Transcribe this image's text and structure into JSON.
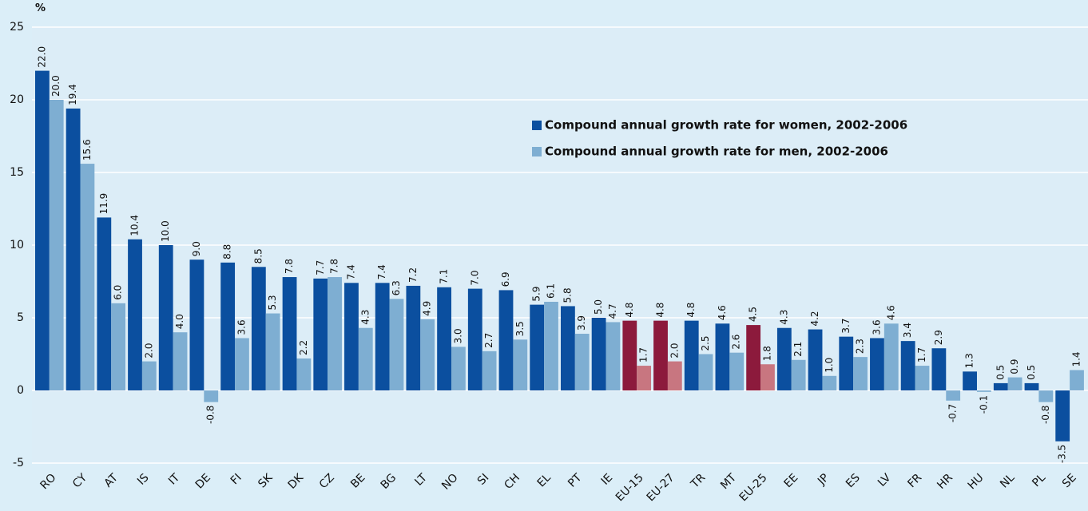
{
  "chart_data": {
    "type": "bar",
    "y_label": "%",
    "categories": [
      "RO",
      "CY",
      "AT",
      "IS",
      "IT",
      "DE",
      "FI",
      "SK",
      "DK",
      "CZ",
      "BE",
      "BG",
      "LT",
      "NO",
      "SI",
      "CH",
      "EL",
      "PT",
      "IE",
      "EU-15",
      "EU-27",
      "TR",
      "MT",
      "EU-25",
      "EE",
      "JP",
      "ES",
      "LV",
      "FR",
      "HR",
      "HU",
      "NL",
      "PL",
      "SE"
    ],
    "series": [
      {
        "name": "Compound annual growth rate for women, 2002-2006",
        "color": "#0b4f9f",
        "colors": [
          "#0b4f9f",
          "#0b4f9f",
          "#0b4f9f",
          "#0b4f9f",
          "#0b4f9f",
          "#0b4f9f",
          "#0b4f9f",
          "#0b4f9f",
          "#0b4f9f",
          "#0b4f9f",
          "#0b4f9f",
          "#0b4f9f",
          "#0b4f9f",
          "#0b4f9f",
          "#0b4f9f",
          "#0b4f9f",
          "#0b4f9f",
          "#0b4f9f",
          "#0b4f9f",
          "#8c1a3c",
          "#8c1a3c",
          "#0b4f9f",
          "#0b4f9f",
          "#8c1a3c",
          "#0b4f9f",
          "#0b4f9f",
          "#0b4f9f",
          "#0b4f9f",
          "#0b4f9f",
          "#0b4f9f",
          "#0b4f9f",
          "#0b4f9f",
          "#0b4f9f",
          "#0b4f9f"
        ],
        "values": [
          22,
          19.4,
          11.9,
          10.4,
          10,
          9,
          8.8,
          8.5,
          7.8,
          7.7,
          7.4,
          7.4,
          7.2,
          7.1,
          7,
          6.9,
          5.9,
          5.8,
          5,
          4.8,
          4.8,
          4.8,
          4.6,
          4.5,
          4.3,
          4.2,
          3.7,
          3.6,
          3.4,
          2.9,
          1.3,
          0.5,
          0.5,
          -3.5
        ],
        "value_labels": [
          "22.0",
          "19.4",
          "11.9",
          "10.4",
          "10.0",
          "9.0",
          "8.8",
          "8.5",
          "7.8",
          "7.7",
          "7.4",
          "7.4",
          "7.2",
          "7.1",
          "7.0",
          "6.9",
          "5.9",
          "5.8",
          "5.0",
          "4.8",
          "4.8",
          "4.8",
          "4.6",
          "4.5",
          "4.3",
          "4.2",
          "3.7",
          "3.6",
          "3.4",
          "2.9",
          "1.3",
          "0.5",
          "0.5",
          "-3.5"
        ]
      },
      {
        "name": "Compound annual growth rate for men, 2002-2006",
        "color": "#7eaed2",
        "colors": [
          "#7eaed2",
          "#7eaed2",
          "#7eaed2",
          "#7eaed2",
          "#7eaed2",
          "#7eaed2",
          "#7eaed2",
          "#7eaed2",
          "#7eaed2",
          "#7eaed2",
          "#7eaed2",
          "#7eaed2",
          "#7eaed2",
          "#7eaed2",
          "#7eaed2",
          "#7eaed2",
          "#7eaed2",
          "#7eaed2",
          "#7eaed2",
          "#c87680",
          "#c87680",
          "#7eaed2",
          "#7eaed2",
          "#c87680",
          "#7eaed2",
          "#7eaed2",
          "#7eaed2",
          "#7eaed2",
          "#7eaed2",
          "#7eaed2",
          "#7eaed2",
          "#7eaed2",
          "#7eaed2",
          "#7eaed2"
        ],
        "values": [
          20,
          15.6,
          6,
          2,
          4,
          -0.8,
          3.6,
          5.3,
          2.2,
          7.8,
          4.3,
          6.3,
          4.9,
          3,
          2.7,
          3.5,
          6.1,
          3.9,
          4.7,
          1.7,
          2,
          2.5,
          2.6,
          1.8,
          2.1,
          1,
          2.3,
          4.6,
          1.7,
          -0.7,
          -0.1,
          0.9,
          -0.8,
          1.4
        ],
        "value_labels": [
          "20.0",
          "15.6",
          "6.0",
          "2.0",
          "4.0",
          "-0.8",
          "3.6",
          "5.3",
          "2.2",
          "7.8",
          "4.3",
          "6.3",
          "4.9",
          "3.0",
          "2.7",
          "3.5",
          "6.1",
          "3.9",
          "4.7",
          "1.7",
          "2.0",
          "2.5",
          "2.6",
          "1.8",
          "2.1",
          "1.0",
          "2.3",
          "4.6",
          "1.7",
          "-0.7",
          "-0.1",
          "0.9",
          "-0.8",
          "1.4"
        ]
      }
    ],
    "ylim": [
      -5,
      25
    ],
    "yticks": [
      -5,
      0,
      5,
      10,
      15,
      20,
      25
    ],
    "grid": true
  }
}
